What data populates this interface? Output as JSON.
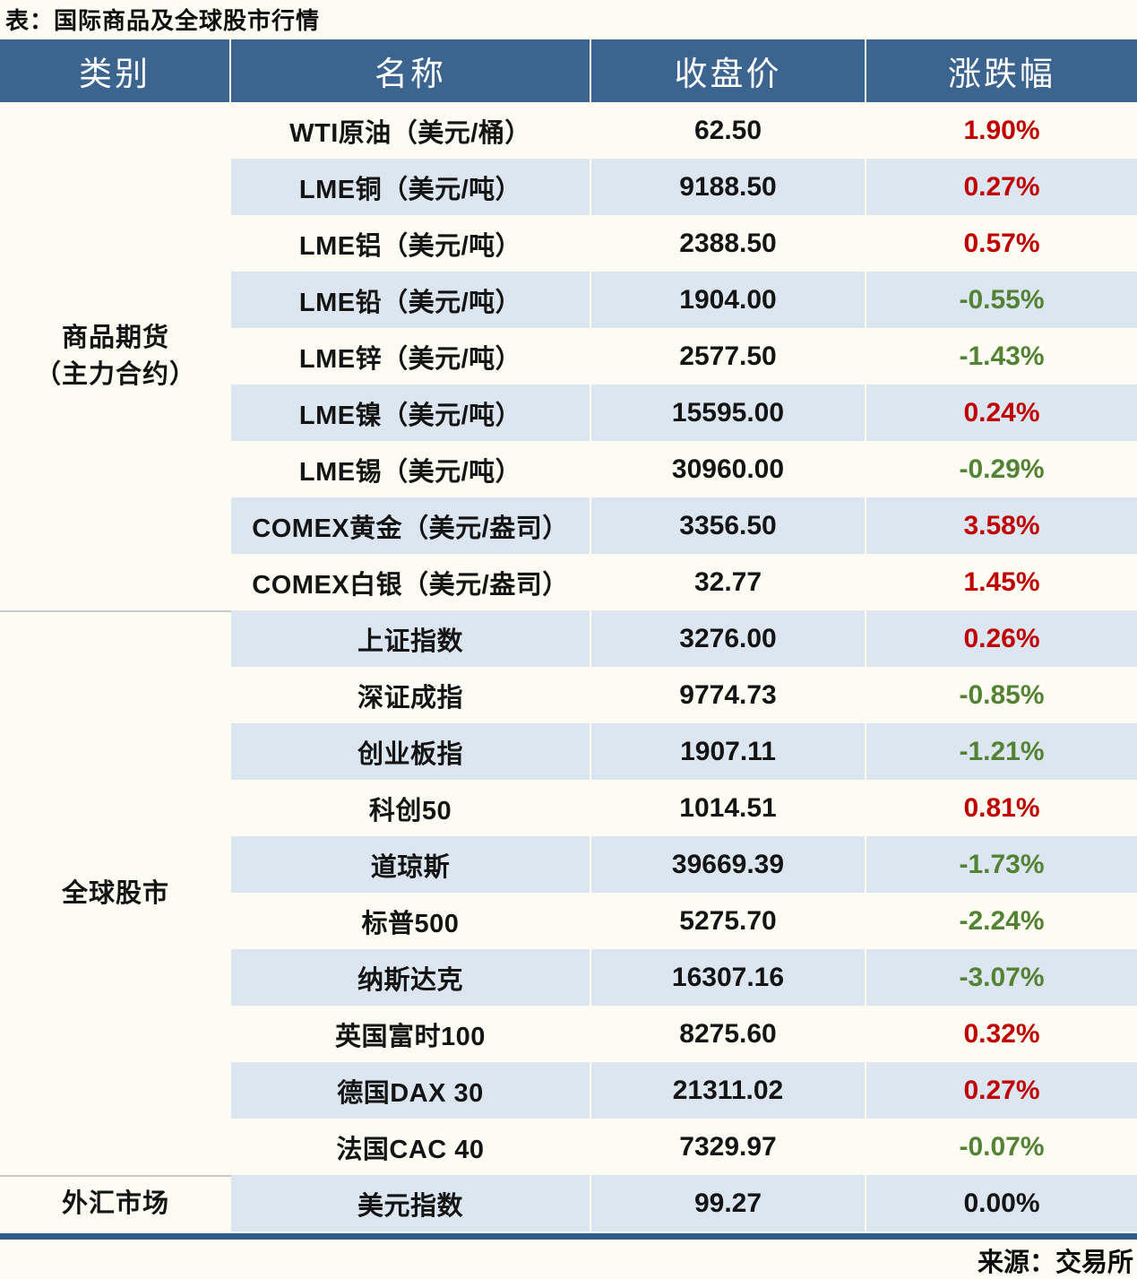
{
  "chart_data": {
    "type": "table",
    "title": "表：国际商品及全球股市行情",
    "columns": [
      "类别",
      "名称",
      "收盘价",
      "涨跌幅"
    ],
    "sections": [
      {
        "category_lines": [
          "商品期货",
          "（主力合约）"
        ],
        "rows": [
          {
            "name": "WTI原油（美元/桶）",
            "close": "62.50",
            "change": "1.90%",
            "direction": "up"
          },
          {
            "name": "LME铜（美元/吨）",
            "close": "9188.50",
            "change": "0.27%",
            "direction": "up"
          },
          {
            "name": "LME铝（美元/吨）",
            "close": "2388.50",
            "change": "0.57%",
            "direction": "up"
          },
          {
            "name": "LME铅（美元/吨）",
            "close": "1904.00",
            "change": "-0.55%",
            "direction": "down"
          },
          {
            "name": "LME锌（美元/吨）",
            "close": "2577.50",
            "change": "-1.43%",
            "direction": "down"
          },
          {
            "name": "LME镍（美元/吨）",
            "close": "15595.00",
            "change": "0.24%",
            "direction": "up"
          },
          {
            "name": "LME锡（美元/吨）",
            "close": "30960.00",
            "change": "-0.29%",
            "direction": "down"
          },
          {
            "name": "COMEX黄金（美元/盎司）",
            "close": "3356.50",
            "change": "3.58%",
            "direction": "up"
          },
          {
            "name": "COMEX白银（美元/盎司）",
            "close": "32.77",
            "change": "1.45%",
            "direction": "up"
          }
        ]
      },
      {
        "category_lines": [
          "全球股市"
        ],
        "rows": [
          {
            "name": "上证指数",
            "close": "3276.00",
            "change": "0.26%",
            "direction": "up"
          },
          {
            "name": "深证成指",
            "close": "9774.73",
            "change": "-0.85%",
            "direction": "down"
          },
          {
            "name": "创业板指",
            "close": "1907.11",
            "change": "-1.21%",
            "direction": "down"
          },
          {
            "name": "科创50",
            "close": "1014.51",
            "change": "0.81%",
            "direction": "up"
          },
          {
            "name": "道琼斯",
            "close": "39669.39",
            "change": "-1.73%",
            "direction": "down"
          },
          {
            "name": "标普500",
            "close": "5275.70",
            "change": "-2.24%",
            "direction": "down"
          },
          {
            "name": "纳斯达克",
            "close": "16307.16",
            "change": "-3.07%",
            "direction": "down"
          },
          {
            "name": "英国富时100",
            "close": "8275.60",
            "change": "0.32%",
            "direction": "up"
          },
          {
            "name": "德国DAX 30",
            "close": "21311.02",
            "change": "0.27%",
            "direction": "up"
          },
          {
            "name": "法国CAC 40",
            "close": "7329.97",
            "change": "-0.07%",
            "direction": "down"
          }
        ]
      },
      {
        "category_lines": [
          "外汇市场"
        ],
        "rows": [
          {
            "name": "美元指数",
            "close": "99.27",
            "change": "0.00%",
            "direction": "flat"
          }
        ]
      }
    ],
    "source": "来源：交易所",
    "layout_hints": {
      "header_style": "dark blue band with white serif text",
      "row_striping": "alternating cream-white and light blue, category column always cream-white",
      "change_color_convention": "red = rise, green = fall, black = unchanged"
    }
  },
  "colors": {
    "header_bg": "#3b648f",
    "alt_row_bg": "#dce6f1",
    "page_bg": "#fdfcf2",
    "up_red": "#c00000",
    "down_green": "#548235",
    "flat_black": "#141414",
    "bottom_border_blue": "#2f5c8a",
    "section_divider_gray": "#c9c9c9"
  }
}
